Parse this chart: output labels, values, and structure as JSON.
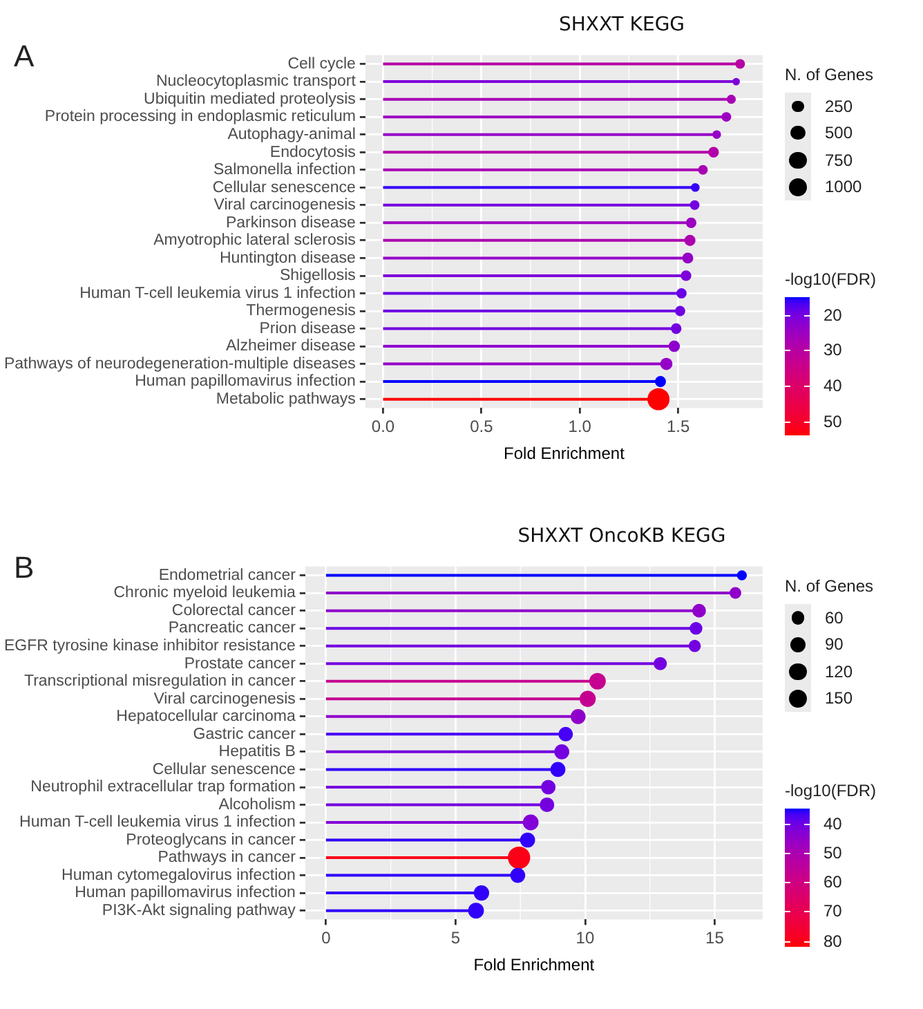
{
  "chart_data": [
    {
      "type": "lollipop",
      "title": "SHXXT KEGG",
      "annotations": [
        "A"
      ],
      "orientation": "horizontal",
      "marker": "circle",
      "grid": true,
      "categories": [
        "Cell cycle",
        "Nucleocytoplasmic transport",
        "Ubiquitin mediated proteolysis",
        "Protein processing in endoplasmic reticulum",
        "Autophagy-animal",
        "Endocytosis",
        "Salmonella infection",
        "Cellular senescence",
        "Viral carcinogenesis",
        "Parkinson disease",
        "Amyotrophic lateral sclerosis",
        "Huntington disease",
        "Shigellosis",
        "Human T-cell leukemia virus 1 infection",
        "Thermogenesis",
        "Prion disease",
        "Alzheimer disease",
        "Pathways of neurodegeneration-multiple diseases",
        "Human papillomavirus infection",
        "Metabolic pathways"
      ],
      "values": [
        1.815,
        1.795,
        1.77,
        1.745,
        1.696,
        1.68,
        1.626,
        1.587,
        1.584,
        1.566,
        1.56,
        1.549,
        1.54,
        1.517,
        1.51,
        1.49,
        1.48,
        1.44,
        1.41,
        1.4
      ],
      "sizes": [
        250,
        150,
        220,
        250,
        200,
        300,
        250,
        200,
        250,
        300,
        330,
        320,
        300,
        280,
        280,
        300,
        350,
        400,
        330,
        1300
      ],
      "size_legend": [
        250,
        500,
        750,
        1000
      ],
      "legend_title": "N. of Genes",
      "cvalues": [
        30,
        21,
        27,
        25,
        24,
        29,
        27,
        16,
        20,
        25,
        28,
        24,
        21,
        19,
        19.5,
        20,
        23,
        24,
        15,
        54
      ],
      "clim": [
        15,
        54
      ],
      "cticks": [
        20,
        30,
        40,
        50
      ],
      "clabel": "-log10(FDR)",
      "xlim": [
        -0.09,
        1.93
      ],
      "xticks": [
        {
          "value": 0,
          "label": "0.0"
        },
        {
          "value": 0.5,
          "label": "0.5"
        },
        {
          "value": 1,
          "label": "1.0"
        },
        {
          "value": 1.5,
          "label": "1.5"
        }
      ],
      "xlabel": "Fold Enrichment"
    },
    {
      "type": "lollipop",
      "title": "SHXXT OncoKB KEGG",
      "annotations": [
        "B"
      ],
      "orientation": "horizontal",
      "marker": "circle",
      "grid": true,
      "categories": [
        "Endometrial cancer",
        "Chronic myeloid leukemia",
        "Colorectal cancer",
        "Pancreatic cancer",
        "EGFR tyrosine kinase inhibitor resistance",
        "Prostate cancer",
        "Transcriptional misregulation in cancer",
        "Viral carcinogenesis",
        "Hepatocellular carcinoma",
        "Gastric cancer",
        "Hepatitis B",
        "Cellular senescence",
        "Neutrophil extracellular trap formation",
        "Alcoholism",
        "Human T-cell leukemia virus 1 infection",
        "Proteoglycans in cancer",
        "Pathways in cancer",
        "Human cytomegalovirus infection",
        "Human papillomavirus infection",
        "PI3K-Akt signaling pathway"
      ],
      "values": [
        16.05,
        15.8,
        14.4,
        14.28,
        14.23,
        12.9,
        10.48,
        10.1,
        9.73,
        9.25,
        9.1,
        8.95,
        8.58,
        8.53,
        7.9,
        7.78,
        7.45,
        7.4,
        6.0,
        5.79
      ],
      "sizes": [
        40,
        55,
        75,
        65,
        60,
        70,
        110,
        105,
        90,
        85,
        90,
        90,
        85,
        85,
        100,
        90,
        200,
        90,
        95,
        100
      ],
      "size_legend": [
        60,
        90,
        120,
        150
      ],
      "legend_title": "N. of Genes",
      "cvalues": [
        35,
        45,
        45,
        40,
        41,
        41,
        57,
        57,
        45,
        37,
        41,
        36,
        41,
        41,
        43,
        36,
        80,
        36,
        36,
        36
      ],
      "clim": [
        35,
        82
      ],
      "cticks": [
        40,
        50,
        60,
        70,
        80
      ],
      "clabel": "-log10(FDR)",
      "xlim": [
        -0.8,
        16.85
      ],
      "xticks": [
        0,
        5,
        10,
        15
      ],
      "xlabel": "Fold Enrichment"
    }
  ]
}
